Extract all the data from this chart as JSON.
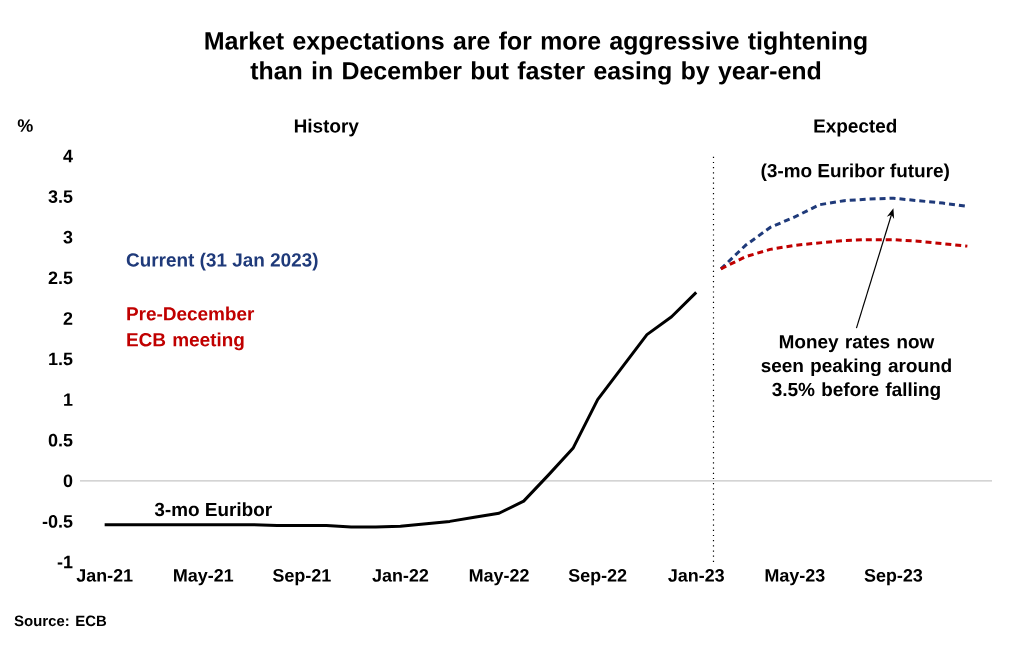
{
  "chart_data": {
    "type": "line",
    "title": "Market expectations are for more aggressive tightening than in December but faster easing by year-end",
    "ylabel": "%",
    "xlim": [
      "2020-12",
      "2024-01"
    ],
    "ylim": [
      -1,
      4
    ],
    "xticks": [
      {
        "value": "2021-01",
        "label": "Jan-21"
      },
      {
        "value": "2021-05",
        "label": "May-21"
      },
      {
        "value": "2021-09",
        "label": "Sep-21"
      },
      {
        "value": "2022-01",
        "label": "Jan-22"
      },
      {
        "value": "2022-05",
        "label": "May-22"
      },
      {
        "value": "2022-09",
        "label": "Sep-22"
      },
      {
        "value": "2023-01",
        "label": "Jan-23"
      },
      {
        "value": "2023-05",
        "label": "May-23"
      },
      {
        "value": "2023-09",
        "label": "Sep-23"
      }
    ],
    "yticks": [
      -1,
      -0.5,
      0,
      0.5,
      1,
      1.5,
      2,
      2.5,
      3,
      3.5,
      4
    ],
    "series": [
      {
        "name": "3-mo Euribor",
        "color": "#000000",
        "line_style": "solid",
        "x": [
          "2021-01",
          "2021-02",
          "2021-03",
          "2021-04",
          "2021-05",
          "2021-06",
          "2021-07",
          "2021-08",
          "2021-09",
          "2021-10",
          "2021-11",
          "2021-12",
          "2022-01",
          "2022-02",
          "2022-03",
          "2022-04",
          "2022-05",
          "2022-06",
          "2022-07",
          "2022-08",
          "2022-09",
          "2022-10",
          "2022-11",
          "2022-12",
          "2023-01"
        ],
        "values": [
          -0.54,
          -0.54,
          -0.54,
          -0.54,
          -0.54,
          -0.54,
          -0.54,
          -0.55,
          -0.55,
          -0.55,
          -0.57,
          -0.57,
          -0.56,
          -0.53,
          -0.5,
          -0.45,
          -0.4,
          -0.25,
          0.07,
          0.4,
          1.0,
          1.4,
          1.8,
          2.02,
          2.32
        ]
      },
      {
        "name": "Current (31 Jan 2023)",
        "color": "#1f3a7a",
        "line_style": "dashed",
        "x": [
          "2023-02",
          "2023-03",
          "2023-04",
          "2023-05",
          "2023-06",
          "2023-07",
          "2023-08",
          "2023-09",
          "2023-10",
          "2023-11",
          "2023-12"
        ],
        "values": [
          2.61,
          2.9,
          3.12,
          3.25,
          3.4,
          3.45,
          3.47,
          3.48,
          3.45,
          3.42,
          3.38
        ]
      },
      {
        "name": "Pre-December ECB meeting",
        "color": "#c00000",
        "line_style": "dashed",
        "x": [
          "2023-02",
          "2023-03",
          "2023-04",
          "2023-05",
          "2023-06",
          "2023-07",
          "2023-08",
          "2023-09",
          "2023-10",
          "2023-11",
          "2023-12"
        ],
        "values": [
          2.61,
          2.76,
          2.85,
          2.9,
          2.93,
          2.96,
          2.97,
          2.97,
          2.95,
          2.92,
          2.89
        ]
      }
    ],
    "ref_lines": [
      {
        "axis": "x",
        "value": "2023-01-22",
        "color": "#000000",
        "line_style": "dotted"
      }
    ],
    "annotations": [
      "History",
      "Expected",
      "(3-mo Euribor future)",
      {
        "text": "Money rates now seen peaking around 3.5% before falling",
        "x": "2023-09",
        "y": 3.48
      },
      "Source: ECB"
    ],
    "legend": false
  }
}
